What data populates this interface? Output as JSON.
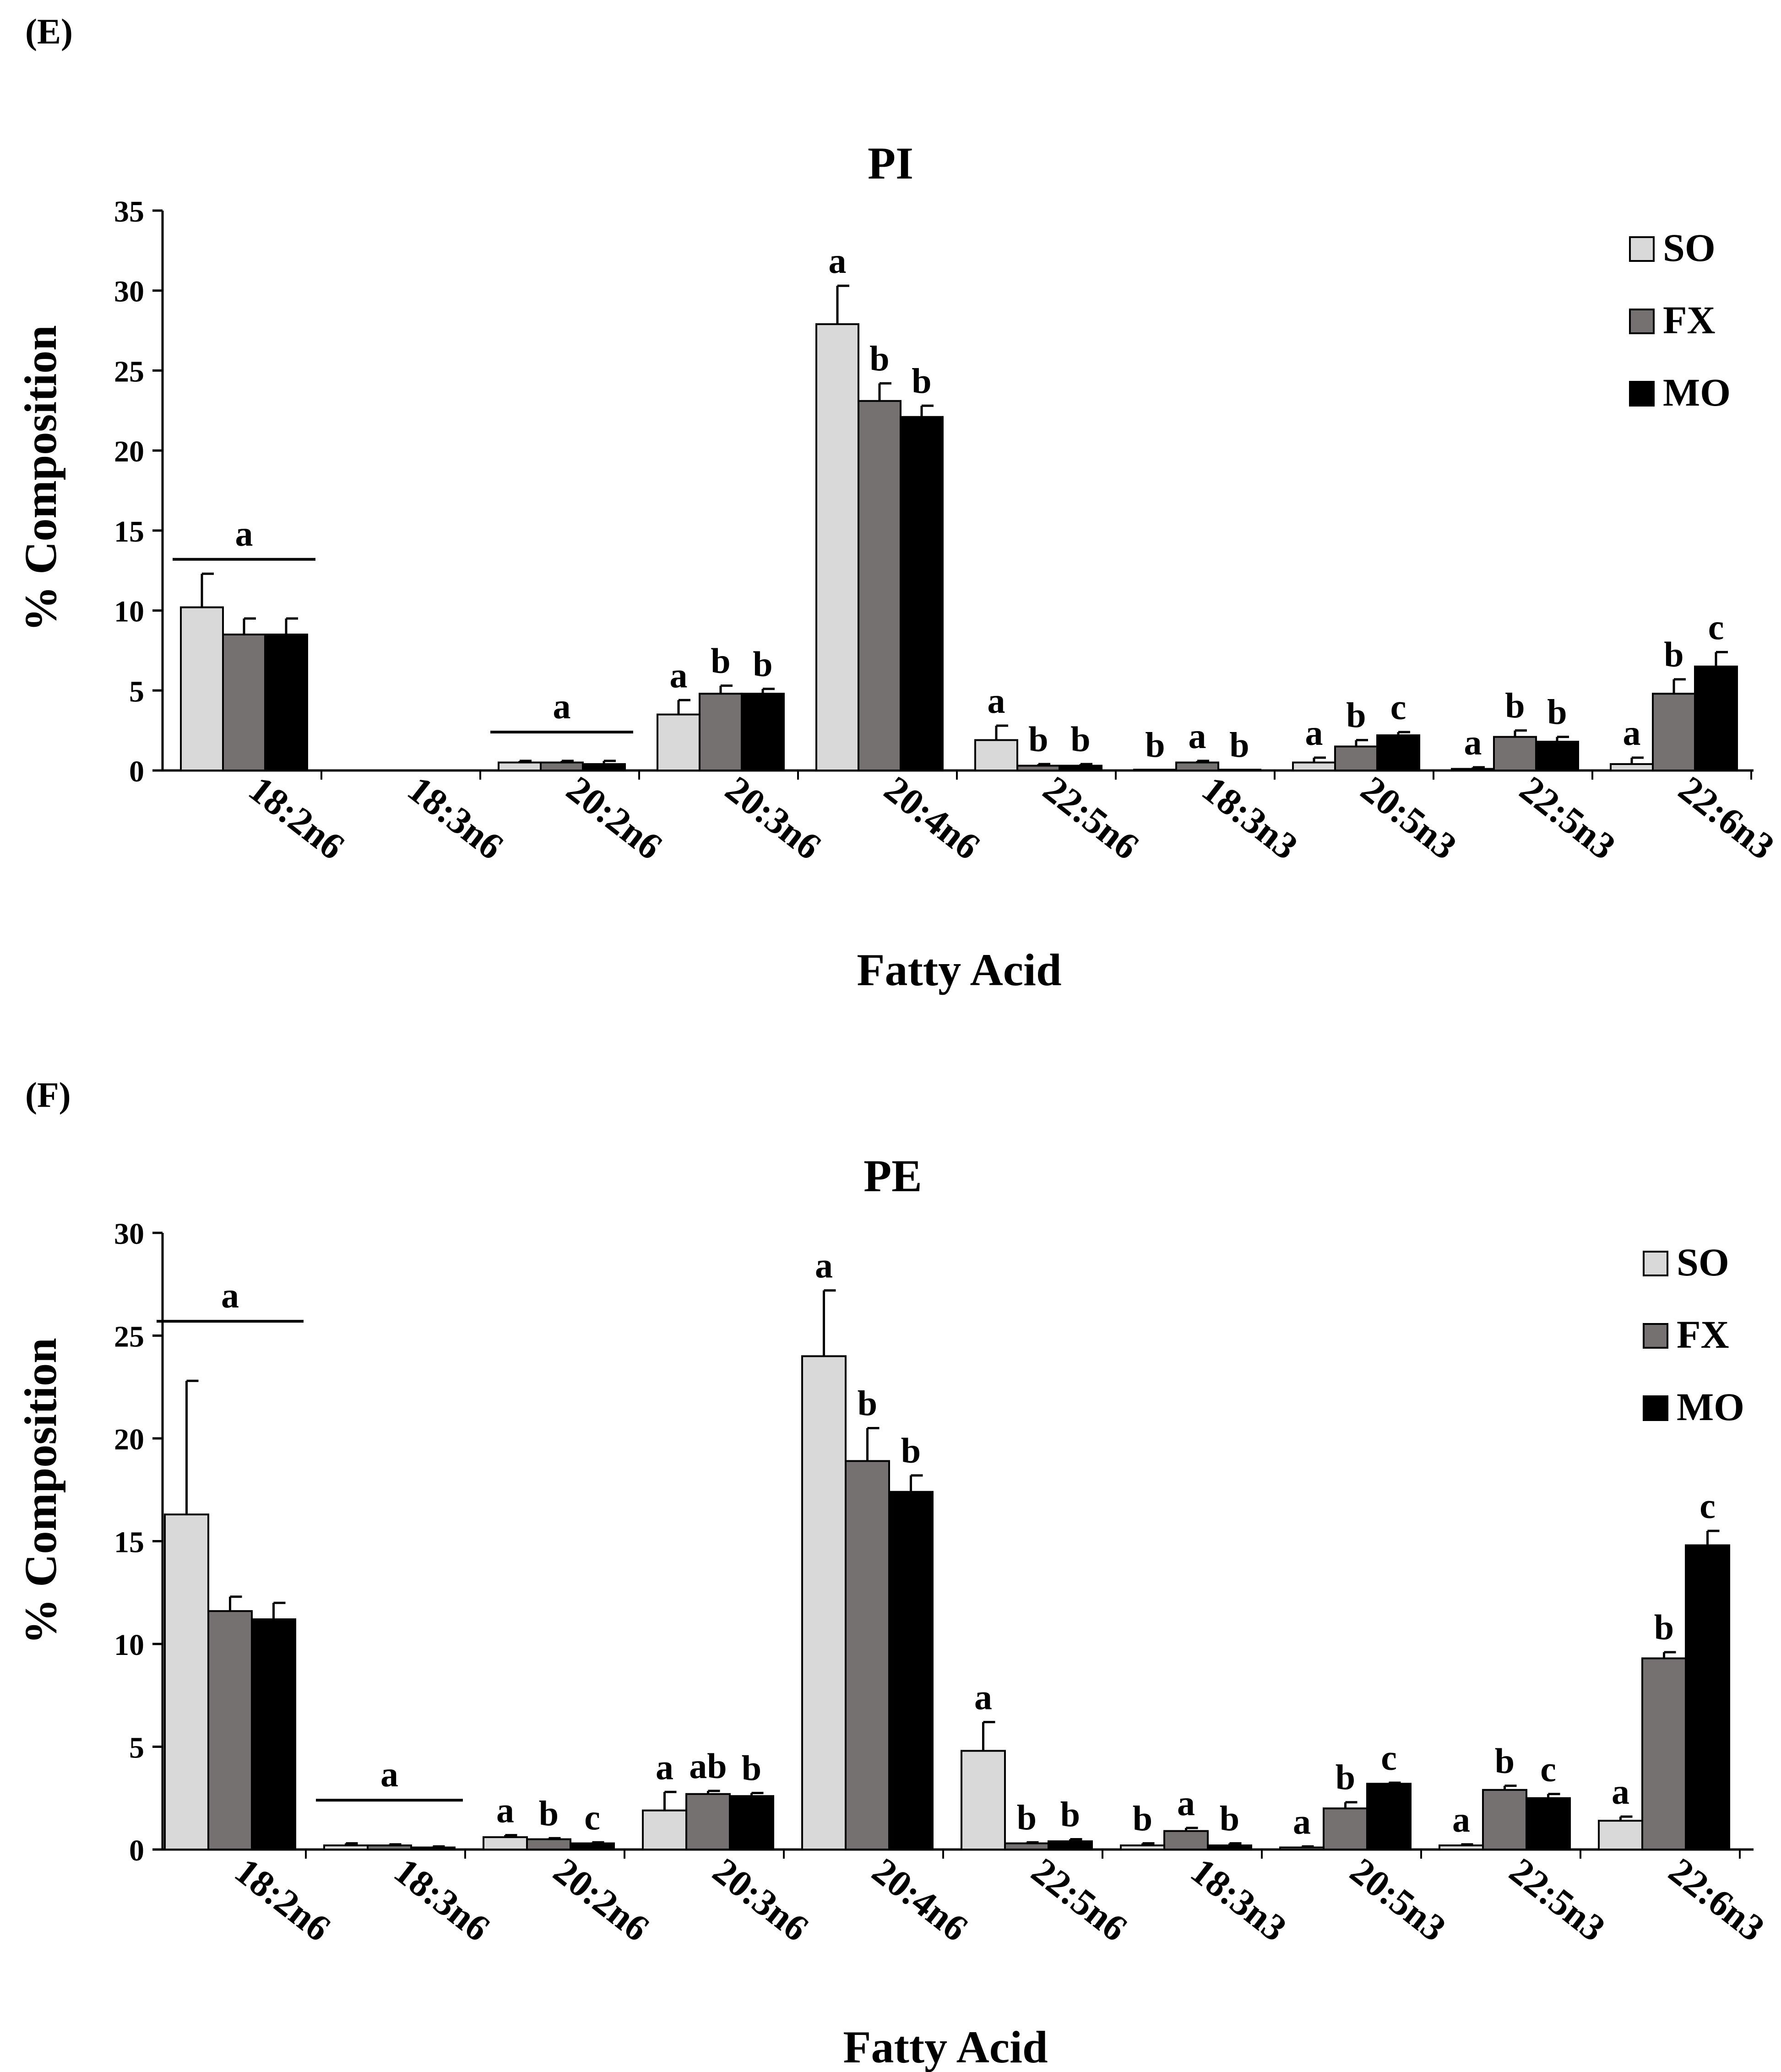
{
  "chart_data": [
    {
      "type": "bar",
      "panel_label": "(E)",
      "title": "PI",
      "xlabel": "Fatty Acid",
      "ylabel": "% Composition",
      "ylim": [
        0,
        35
      ],
      "yticks": [
        "0",
        "5",
        "10",
        "15",
        "20",
        "25",
        "30",
        "35"
      ],
      "grid": false,
      "legend_position": "top-right",
      "categories": [
        "18:2n6",
        "18:3n6",
        "20:2n6",
        "20:3n6",
        "20:4n6",
        "22:5n6",
        "18:3n3",
        "20:5n3",
        "22:5n3",
        "22:6n3"
      ],
      "series": [
        {
          "name": "SO",
          "color": "#d9d9d9",
          "values": [
            10.2,
            0.0,
            0.5,
            3.5,
            27.9,
            1.9,
            0.05,
            0.5,
            0.1,
            0.4
          ],
          "errors": [
            2.1,
            0.0,
            0.1,
            0.9,
            2.4,
            0.9,
            0.0,
            0.3,
            0.1,
            0.4
          ]
        },
        {
          "name": "FX",
          "color": "#767171",
          "values": [
            8.5,
            0.0,
            0.5,
            4.8,
            23.1,
            0.3,
            0.5,
            1.5,
            2.1,
            4.8
          ],
          "errors": [
            1.0,
            0.0,
            0.1,
            0.5,
            1.1,
            0.1,
            0.1,
            0.4,
            0.4,
            0.9
          ]
        },
        {
          "name": "MO",
          "color": "#000000",
          "values": [
            8.5,
            0.0,
            0.4,
            4.8,
            22.1,
            0.3,
            0.05,
            2.2,
            1.8,
            6.5
          ],
          "errors": [
            1.0,
            0.0,
            0.2,
            0.3,
            0.7,
            0.1,
            0.0,
            0.2,
            0.3,
            0.9
          ]
        }
      ],
      "letters": [
        [
          "",
          "",
          ""
        ],
        [
          "",
          "",
          ""
        ],
        [
          "",
          "",
          ""
        ],
        [
          "a",
          "b",
          "b"
        ],
        [
          "a",
          "b",
          "b"
        ],
        [
          "a",
          "b",
          "b"
        ],
        [
          "b",
          "a",
          "b"
        ],
        [
          "a",
          "b",
          "c"
        ],
        [
          "a",
          "b",
          "b"
        ],
        [
          "a",
          "b",
          "c"
        ]
      ],
      "group_annotations": [
        {
          "category": 0,
          "label": "a",
          "value": 13.2
        },
        {
          "category": 2,
          "label": "a",
          "value": 2.4
        }
      ]
    },
    {
      "type": "bar",
      "panel_label": "(F)",
      "title": "PE",
      "xlabel": "Fatty Acid",
      "ylabel": "% Composition",
      "ylim": [
        0,
        30
      ],
      "yticks": [
        "0",
        "5",
        "10",
        "15",
        "20",
        "25",
        "30"
      ],
      "grid": false,
      "legend_position": "top-right",
      "categories": [
        "18:2n6",
        "18:3n6",
        "20:2n6",
        "20:3n6",
        "20:4n6",
        "22:5n6",
        "18:3n3",
        "20:5n3",
        "22:5n3",
        "22:6n3"
      ],
      "series": [
        {
          "name": "SO",
          "color": "#d9d9d9",
          "values": [
            16.3,
            0.2,
            0.6,
            1.9,
            24.0,
            4.8,
            0.2,
            0.1,
            0.2,
            1.4
          ],
          "errors": [
            6.5,
            0.1,
            0.1,
            0.9,
            3.2,
            1.4,
            0.1,
            0.05,
            0.05,
            0.2
          ]
        },
        {
          "name": "FX",
          "color": "#767171",
          "values": [
            11.6,
            0.2,
            0.5,
            2.7,
            18.9,
            0.3,
            0.9,
            2.0,
            2.9,
            9.3
          ],
          "errors": [
            0.7,
            0.05,
            0.05,
            0.15,
            1.6,
            0.05,
            0.15,
            0.3,
            0.2,
            0.3
          ]
        },
        {
          "name": "MO",
          "color": "#000000",
          "values": [
            11.2,
            0.1,
            0.3,
            2.6,
            17.4,
            0.4,
            0.2,
            3.2,
            2.5,
            14.8
          ],
          "errors": [
            0.8,
            0.05,
            0.05,
            0.15,
            0.8,
            0.1,
            0.1,
            0.05,
            0.2,
            0.7
          ]
        }
      ],
      "letters": [
        [
          "",
          "",
          ""
        ],
        [
          "",
          "",
          ""
        ],
        [
          "a",
          "b",
          "c"
        ],
        [
          "a",
          "ab",
          "b"
        ],
        [
          "a",
          "b",
          "b"
        ],
        [
          "a",
          "b",
          "b"
        ],
        [
          "b",
          "a",
          "b"
        ],
        [
          "a",
          "b",
          "c"
        ],
        [
          "a",
          "b",
          "c"
        ],
        [
          "a",
          "b",
          "c"
        ]
      ],
      "group_annotations": [
        {
          "category": 0,
          "label": "a",
          "value": 25.7
        },
        {
          "category": 1,
          "label": "a",
          "value": 2.4
        }
      ]
    }
  ]
}
